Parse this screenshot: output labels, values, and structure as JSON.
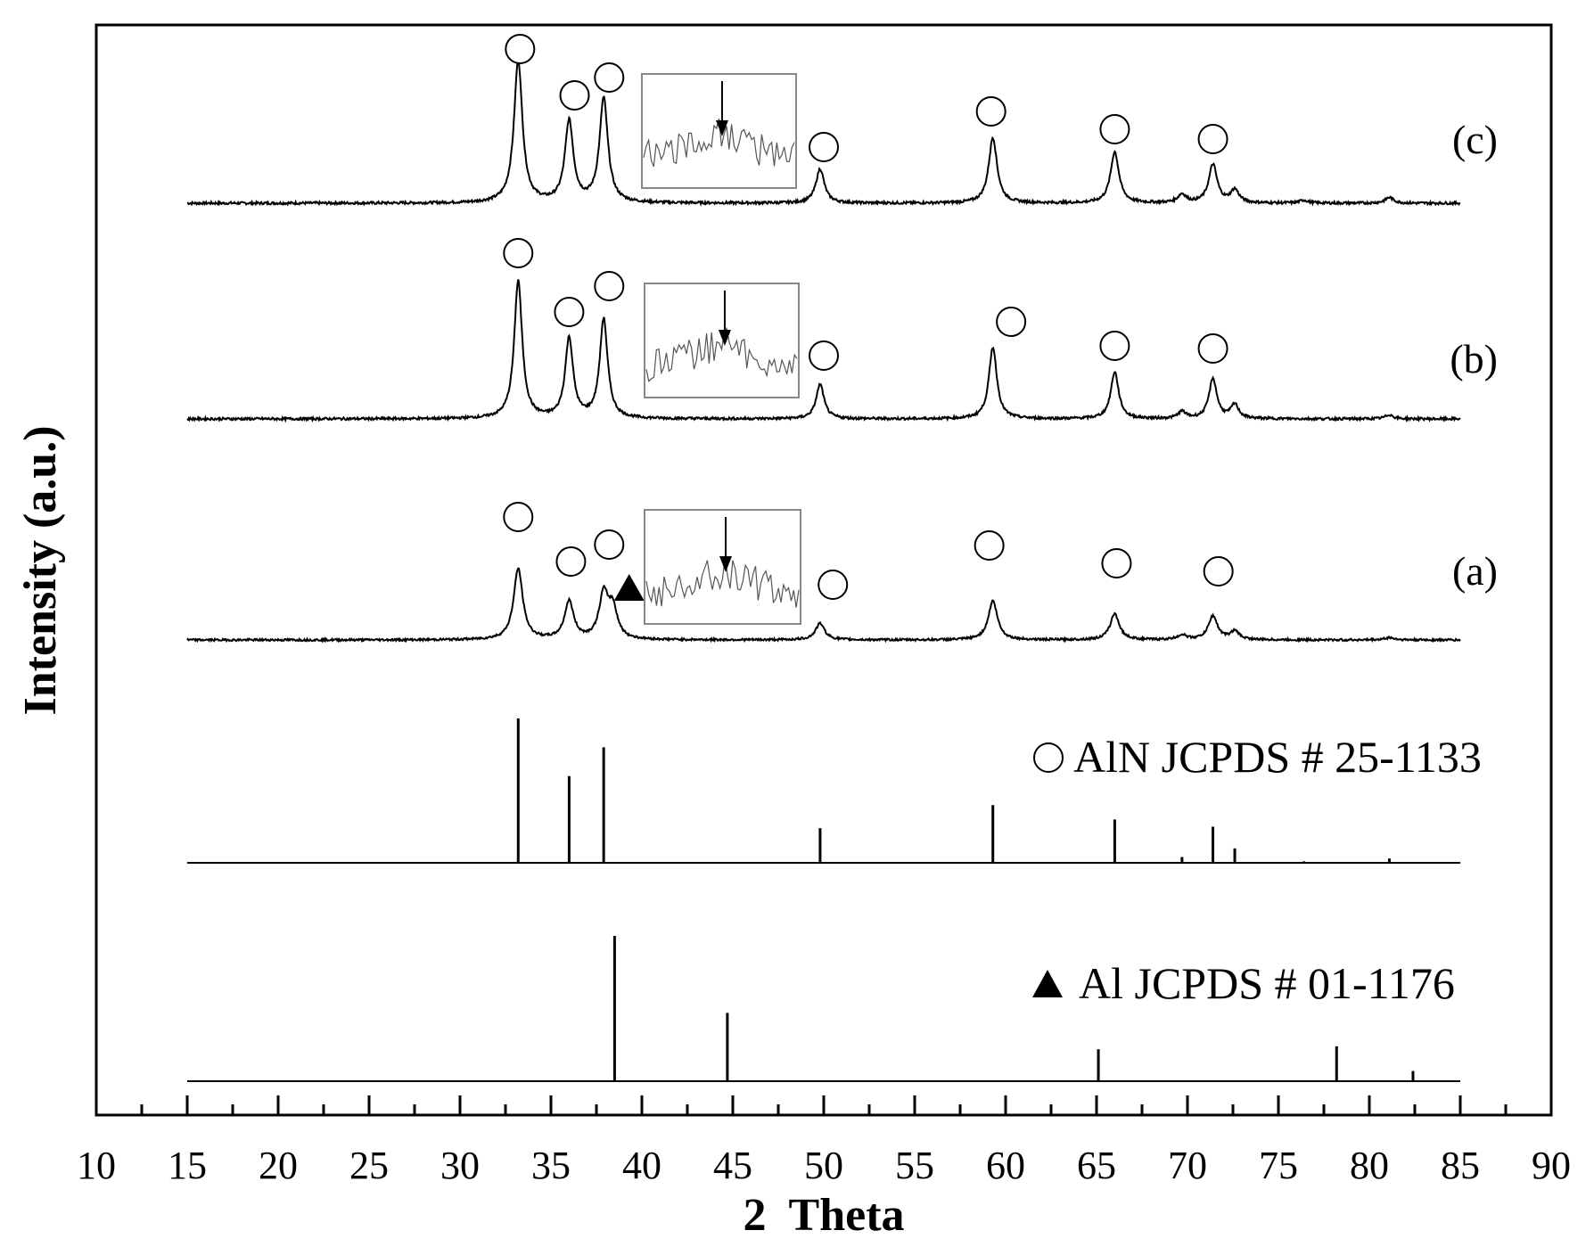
{
  "chart_data": {
    "type": "line",
    "title": "",
    "xlabel": "2  Theta",
    "ylabel": "Intensity (a.u.)",
    "xlim": [
      10,
      90
    ],
    "x_ticks": [
      10,
      15,
      20,
      25,
      30,
      35,
      40,
      45,
      50,
      55,
      60,
      65,
      70,
      75,
      80,
      85,
      90
    ],
    "y_ticks_shown": false,
    "grid": false,
    "colors": {
      "line": "#000000",
      "background": "#ffffff",
      "inset_border": "#888888"
    },
    "x_range_plotted": [
      15,
      85
    ],
    "series": [
      {
        "name": "(c)",
        "peaks": [
          {
            "x": 33.2,
            "y": 1.0
          },
          {
            "x": 36.0,
            "y": 0.57
          },
          {
            "x": 37.9,
            "y": 0.73
          },
          {
            "x": 49.8,
            "y": 0.24
          },
          {
            "x": 59.3,
            "y": 0.46
          },
          {
            "x": 66.0,
            "y": 0.36
          },
          {
            "x": 69.7,
            "y": 0.06
          },
          {
            "x": 71.4,
            "y": 0.27
          },
          {
            "x": 72.6,
            "y": 0.09
          },
          {
            "x": 76.4,
            "y": 0.02
          },
          {
            "x": 81.1,
            "y": 0.04
          }
        ],
        "markers": [
          {
            "symbol": "circle",
            "x": 33.3
          },
          {
            "symbol": "circle",
            "x": 36.3
          },
          {
            "symbol": "circle",
            "x": 38.2
          },
          {
            "symbol": "circle",
            "x": 50.0
          },
          {
            "symbol": "circle",
            "x": 59.2
          },
          {
            "symbol": "circle",
            "x": 66.0
          },
          {
            "symbol": "circle",
            "x": 71.4
          }
        ],
        "inset": true
      },
      {
        "name": "(b)",
        "peaks": [
          {
            "x": 33.2,
            "y": 1.0
          },
          {
            "x": 36.0,
            "y": 0.58
          },
          {
            "x": 37.9,
            "y": 0.72
          },
          {
            "x": 49.8,
            "y": 0.25
          },
          {
            "x": 59.3,
            "y": 0.52
          },
          {
            "x": 66.0,
            "y": 0.34
          },
          {
            "x": 69.7,
            "y": 0.05
          },
          {
            "x": 71.4,
            "y": 0.29
          },
          {
            "x": 72.6,
            "y": 0.1
          },
          {
            "x": 81.1,
            "y": 0.03
          }
        ],
        "markers": [
          {
            "symbol": "circle",
            "x": 33.2
          },
          {
            "symbol": "circle",
            "x": 36.0
          },
          {
            "symbol": "circle",
            "x": 38.2
          },
          {
            "symbol": "circle",
            "x": 50.0
          },
          {
            "symbol": "circle",
            "x": 60.3
          },
          {
            "symbol": "circle",
            "x": 66.0
          },
          {
            "symbol": "circle",
            "x": 71.4
          }
        ],
        "inset": true
      },
      {
        "name": "(a)",
        "peaks": [
          {
            "x": 33.2,
            "y": 0.6
          },
          {
            "x": 36.0,
            "y": 0.32
          },
          {
            "x": 37.9,
            "y": 0.37
          },
          {
            "x": 38.4,
            "y": 0.25
          },
          {
            "x": 49.8,
            "y": 0.14
          },
          {
            "x": 59.3,
            "y": 0.33
          },
          {
            "x": 66.0,
            "y": 0.22
          },
          {
            "x": 69.7,
            "y": 0.04
          },
          {
            "x": 71.4,
            "y": 0.2
          },
          {
            "x": 72.6,
            "y": 0.07
          },
          {
            "x": 81.1,
            "y": 0.02
          }
        ],
        "markers": [
          {
            "symbol": "circle",
            "x": 33.2
          },
          {
            "symbol": "circle",
            "x": 36.1
          },
          {
            "symbol": "circle",
            "x": 38.2
          },
          {
            "symbol": "triangle",
            "x": 39.3
          },
          {
            "symbol": "circle",
            "x": 50.5
          },
          {
            "symbol": "circle",
            "x": 59.1
          },
          {
            "symbol": "circle",
            "x": 66.1
          },
          {
            "symbol": "circle",
            "x": 71.7
          }
        ],
        "inset": true
      }
    ],
    "reference_patterns": [
      {
        "name": "AlN JCPDS # 25-1133",
        "symbol": "circle",
        "sticks": [
          {
            "x": 33.2,
            "y": 100
          },
          {
            "x": 36.0,
            "y": 60
          },
          {
            "x": 37.9,
            "y": 80
          },
          {
            "x": 49.8,
            "y": 24
          },
          {
            "x": 59.3,
            "y": 40
          },
          {
            "x": 66.0,
            "y": 30
          },
          {
            "x": 69.7,
            "y": 4
          },
          {
            "x": 71.4,
            "y": 25
          },
          {
            "x": 72.6,
            "y": 10
          },
          {
            "x": 76.4,
            "y": 1
          },
          {
            "x": 81.1,
            "y": 3
          }
        ]
      },
      {
        "name": "Al JCPDS # 01-1176",
        "symbol": "triangle",
        "sticks": [
          {
            "x": 38.5,
            "y": 100
          },
          {
            "x": 44.7,
            "y": 47
          },
          {
            "x": 65.1,
            "y": 22
          },
          {
            "x": 78.2,
            "y": 24
          },
          {
            "x": 82.4,
            "y": 7
          }
        ]
      }
    ]
  }
}
